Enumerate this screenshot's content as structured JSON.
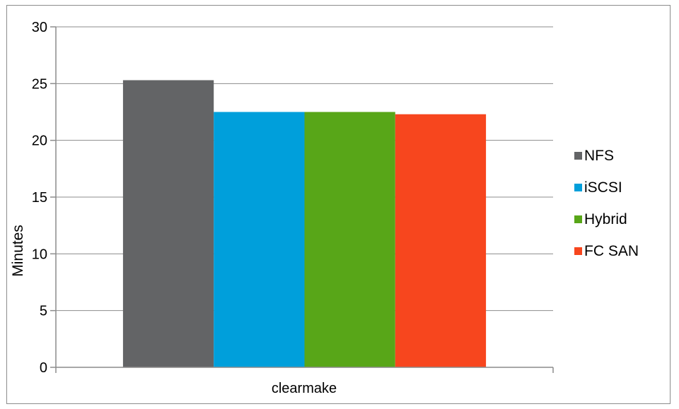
{
  "chart_data": {
    "type": "bar",
    "categories": [
      "clearmake"
    ],
    "series": [
      {
        "name": "NFS",
        "values": [
          25.3
        ],
        "color": "#636466"
      },
      {
        "name": "iSCSI",
        "values": [
          22.5
        ],
        "color": "#009fdb"
      },
      {
        "name": "Hybrid",
        "values": [
          22.5
        ],
        "color": "#58a618"
      },
      {
        "name": "FC SAN",
        "values": [
          22.3
        ],
        "color": "#f7461e"
      }
    ],
    "title": "",
    "xlabel": "",
    "ylabel": "Minutes",
    "ylim": [
      0,
      30
    ],
    "yticks": [
      0,
      5,
      10,
      15,
      20,
      25,
      30
    ],
    "grid": true,
    "legend_position": "right"
  }
}
